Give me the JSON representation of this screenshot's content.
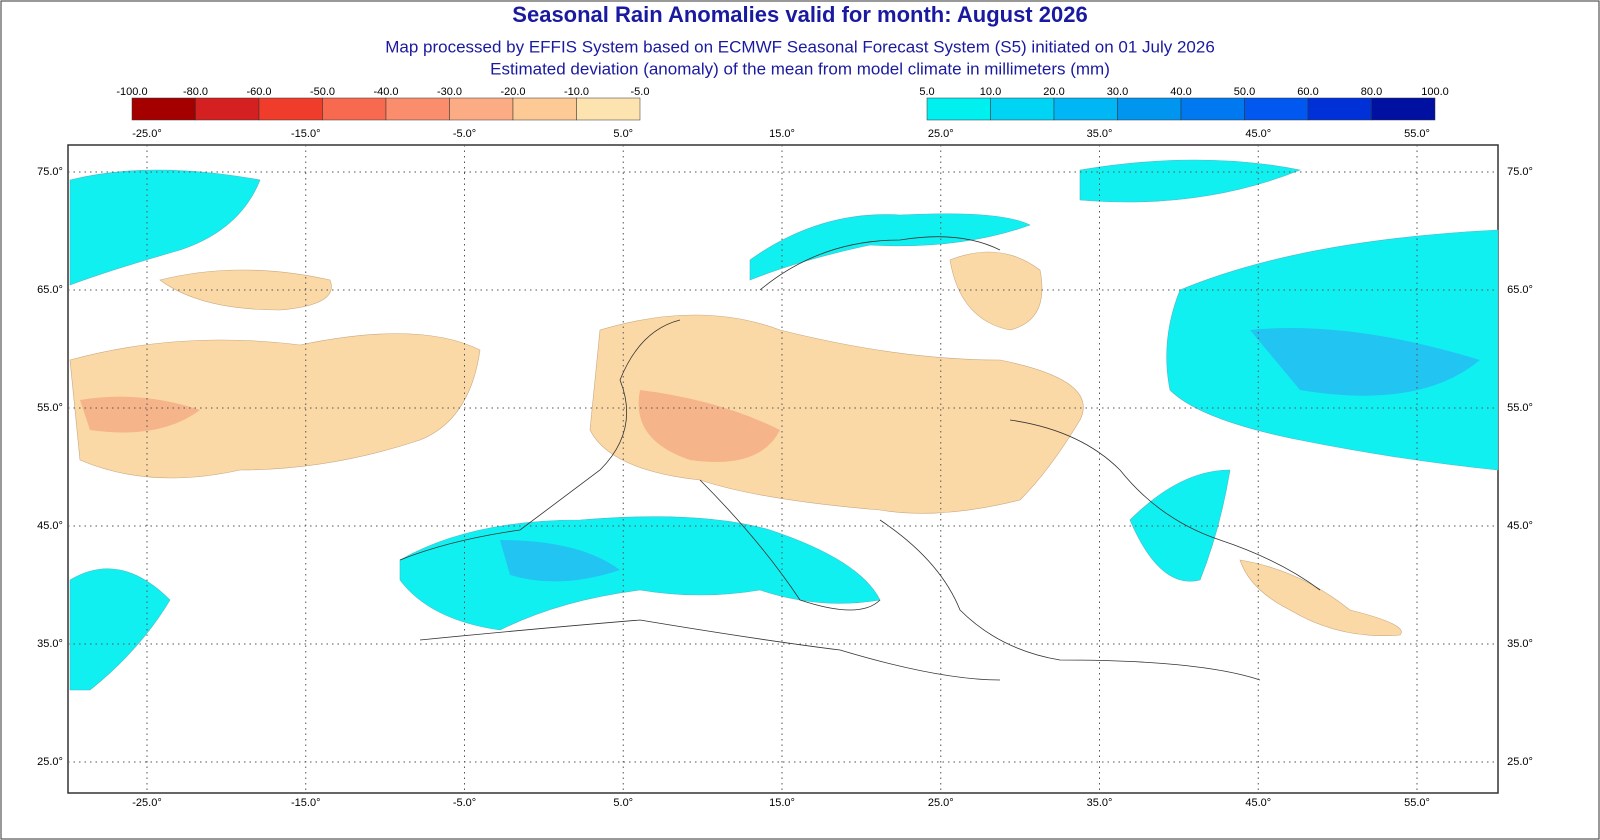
{
  "header": {
    "title": "Seasonal Rain Anomalies valid for month: August 2026",
    "subtitle_1": "Map processed by EFFIS System based on ECMWF Seasonal Forecast System (S5) initiated on 01 July 2026",
    "subtitle_2": "Estimated deviation (anomaly) of the mean from model climate in millimeters (mm)"
  },
  "legend_dry": {
    "labels": [
      "-100.0",
      "-80.0",
      "-60.0",
      "-50.0",
      "-40.0",
      "-30.0",
      "-20.0",
      "-10.0",
      "-5.0"
    ],
    "colors": [
      "#a50000",
      "#d42020",
      "#f03c2b",
      "#f86a4f",
      "#fa8e6c",
      "#fcac84",
      "#fdc995",
      "#fde3b0"
    ]
  },
  "legend_wet": {
    "labels": [
      "5.0",
      "10.0",
      "20.0",
      "30.0",
      "40.0",
      "50.0",
      "60.0",
      "80.0",
      "100.0"
    ],
    "colors": [
      "#00f0f0",
      "#00d4f4",
      "#00b6f4",
      "#0096f0",
      "#0078f0",
      "#0058f0",
      "#0030d8",
      "#0010a0"
    ]
  },
  "lon_ticks": [
    {
      "value": -25,
      "label": "-25.0°"
    },
    {
      "value": -15,
      "label": "-15.0°"
    },
    {
      "value": -5,
      "label": "-5.0°"
    },
    {
      "value": 5,
      "label": "5.0°"
    },
    {
      "value": 15,
      "label": "15.0°"
    },
    {
      "value": 25,
      "label": "25.0°"
    },
    {
      "value": 35,
      "label": "35.0°"
    },
    {
      "value": 45,
      "label": "45.0°"
    },
    {
      "value": 55,
      "label": "55.0°"
    }
  ],
  "lat_ticks": [
    {
      "value": 75,
      "label": "75.0°"
    },
    {
      "value": 65,
      "label": "65.0°"
    },
    {
      "value": 55,
      "label": "55.0°"
    },
    {
      "value": 45,
      "label": "45.0°"
    },
    {
      "value": 35,
      "label": "35.0°"
    },
    {
      "value": 25,
      "label": "25.0°"
    }
  ]
}
